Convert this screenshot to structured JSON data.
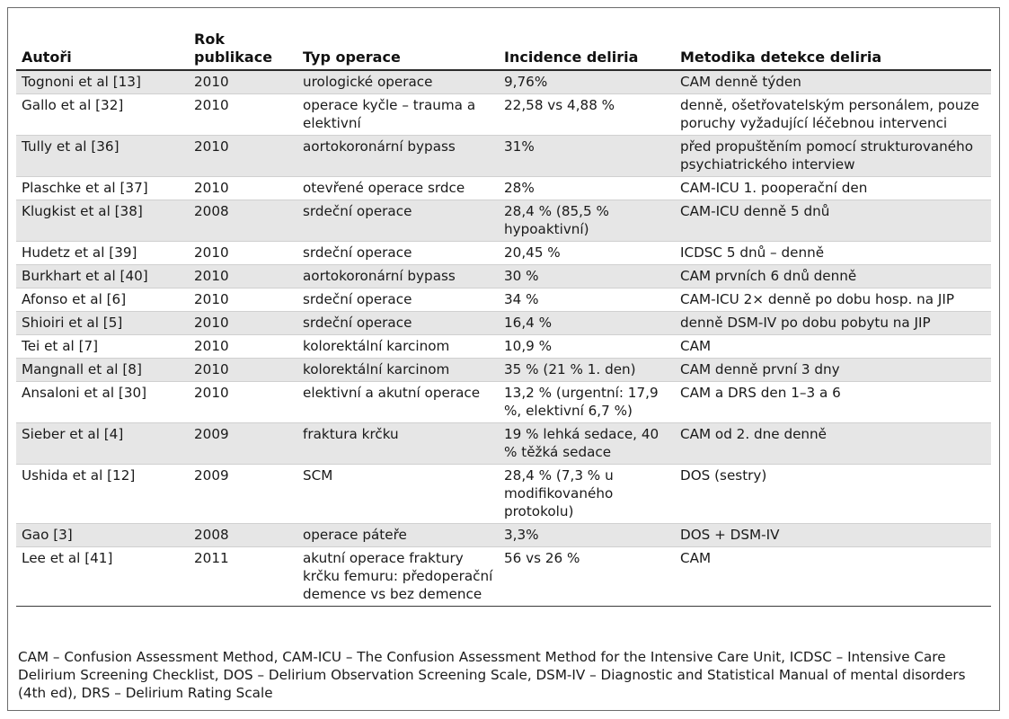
{
  "table": {
    "headers": [
      "Autoři",
      "Rok publikace",
      "Typ operace",
      "Incidence deliria",
      "Metodika detekce deliria"
    ],
    "rows": [
      [
        "Tognoni et al [13]",
        "2010",
        "urologické operace",
        "9,76%",
        "CAM denně týden"
      ],
      [
        "Gallo et al [32]",
        "2010",
        "operace kyčle – trauma a elektivní",
        "22,58 vs 4,88 %",
        "denně, ošetřovatelským personálem, pouze poruchy vyžadující léčebnou intervenci"
      ],
      [
        "Tully et al [36]",
        "2010",
        "aortokoronární bypass",
        "31%",
        "před propuštěním pomocí strukturovaného psychiatrického interview"
      ],
      [
        "Plaschke et al [37]",
        "2010",
        "otevřené operace srdce",
        "28%",
        "CAM-ICU 1. pooperační den"
      ],
      [
        "Klugkist et al [38]",
        "2008",
        "srdeční operace",
        "28,4 % (85,5 % hypoaktivní)",
        "CAM-ICU denně 5 dnů"
      ],
      [
        "Hudetz et al [39]",
        "2010",
        "srdeční operace",
        "20,45 %",
        "ICDSC 5 dnů – denně"
      ],
      [
        "Burkhart et al [40]",
        "2010",
        "aortokoronární bypass",
        "30 %",
        "CAM prvních 6 dnů denně"
      ],
      [
        "Afonso et al [6]",
        "2010",
        "srdeční operace",
        "34 %",
        "CAM-ICU 2× denně po dobu hosp. na JIP"
      ],
      [
        "Shioiri et al [5]",
        "2010",
        "srdeční operace",
        "16,4 %",
        "denně DSM-IV po dobu pobytu na JIP"
      ],
      [
        "Tei et al [7]",
        "2010",
        "kolorektální karcinom",
        "10,9 %",
        "CAM"
      ],
      [
        "Mangnall et al [8]",
        "2010",
        "kolorektální karcinom",
        "35 % (21 % 1. den)",
        "CAM denně první 3 dny"
      ],
      [
        "Ansaloni et al [30]",
        "2010",
        "elektivní a akutní operace",
        "13,2 % (urgentní: 17,9 %, elektivní 6,7 %)",
        "CAM a DRS den 1–3 a 6"
      ],
      [
        "Sieber et al [4]",
        "2009",
        "fraktura krčku",
        "19 % lehká sedace, 40 % těžká sedace",
        "CAM od 2. dne denně"
      ],
      [
        "Ushida et al [12]",
        "2009",
        "SCM",
        "28,4 % (7,3 % u modifikovaného protokolu)",
        "DOS (sestry)"
      ],
      [
        "Gao [3]",
        "2008",
        "operace páteře",
        "3,3%",
        "DOS + DSM-IV"
      ],
      [
        "Lee et al [41]",
        "2011",
        "akutní operace fraktury krčku femuru: předoperační demence vs bez demence",
        "56 vs 26 %",
        "CAM"
      ]
    ]
  },
  "legend": "CAM – Confusion Assessment Method, CAM-ICU – The Confusion Assessment Method for the Intensive Care Unit, ICDSC – Intensive Care Delirium Screening Checklist, DOS – Delirium Observation Screening Scale, DSM-IV – Diagnostic and Statistical Manual of mental disorders (4th ed), DRS – Delirium Rating Scale"
}
